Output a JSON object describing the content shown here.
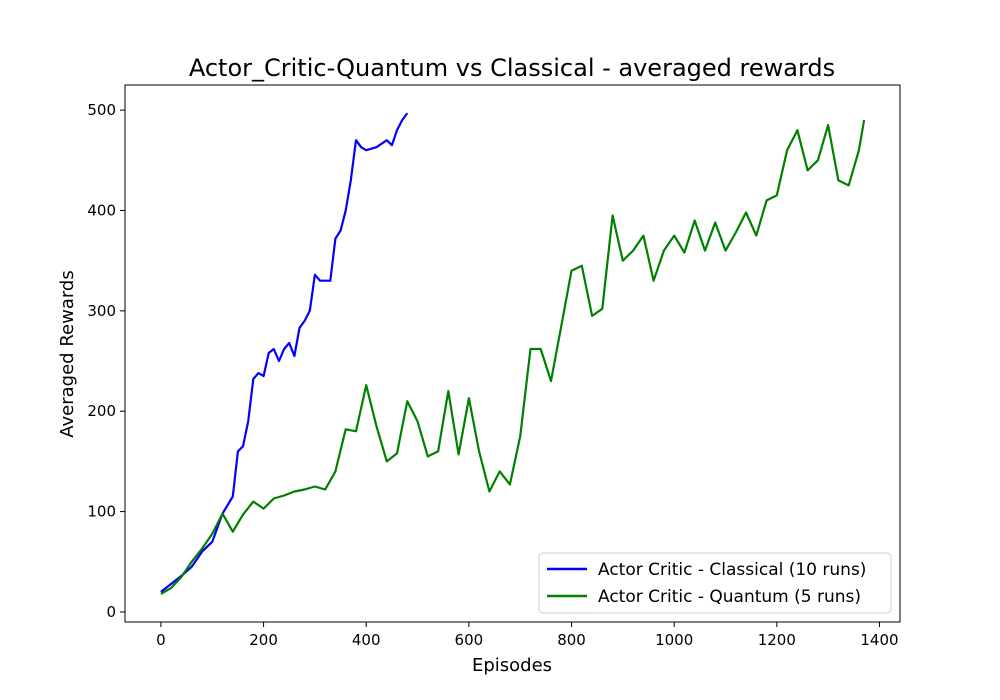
{
  "chart_data": {
    "type": "line",
    "title": "Actor_Critic-Quantum vs Classical - averaged rewards",
    "xlabel": "Episodes",
    "ylabel": "Averaged Rewards",
    "xlim": [
      -70,
      1440
    ],
    "ylim": [
      -10,
      525
    ],
    "xticks": [
      0,
      200,
      400,
      600,
      800,
      1000,
      1200,
      1400
    ],
    "xtick_labels": [
      "0",
      "200",
      "400",
      "600",
      "800",
      "1000",
      "1200",
      "1400"
    ],
    "yticks": [
      0,
      100,
      200,
      300,
      400,
      500
    ],
    "ytick_labels": [
      "0",
      "100",
      "200",
      "300",
      "400",
      "500"
    ],
    "grid": false,
    "legend_position": "lower-right",
    "series": [
      {
        "name": "Actor Critic - Classical (10 runs)",
        "color": "#0000ff",
        "x": [
          0,
          20,
          40,
          60,
          80,
          100,
          120,
          140,
          150,
          160,
          170,
          180,
          190,
          200,
          210,
          220,
          230,
          240,
          250,
          260,
          270,
          280,
          290,
          300,
          310,
          320,
          330,
          340,
          350,
          360,
          370,
          380,
          390,
          400,
          420,
          440,
          450,
          460,
          470,
          480
        ],
        "y": [
          20,
          28,
          36,
          45,
          60,
          70,
          98,
          115,
          160,
          165,
          190,
          232,
          238,
          235,
          258,
          262,
          250,
          262,
          268,
          255,
          283,
          290,
          300,
          336,
          330,
          330,
          330,
          372,
          380,
          400,
          430,
          470,
          463,
          460,
          463,
          470,
          465,
          480,
          490,
          497
        ]
      },
      {
        "name": "Actor Critic - Quantum (5 runs)",
        "color": "#008000",
        "x": [
          0,
          20,
          40,
          60,
          80,
          100,
          120,
          140,
          160,
          180,
          200,
          220,
          240,
          260,
          280,
          300,
          320,
          340,
          360,
          380,
          400,
          420,
          440,
          460,
          480,
          500,
          520,
          540,
          560,
          580,
          600,
          620,
          640,
          660,
          680,
          700,
          720,
          740,
          760,
          780,
          800,
          820,
          840,
          860,
          880,
          900,
          920,
          940,
          960,
          980,
          1000,
          1020,
          1040,
          1060,
          1080,
          1100,
          1120,
          1140,
          1160,
          1180,
          1200,
          1220,
          1240,
          1260,
          1280,
          1300,
          1320,
          1340,
          1360,
          1370
        ],
        "y": [
          18,
          24,
          35,
          50,
          63,
          78,
          98,
          80,
          97,
          110,
          103,
          113,
          116,
          120,
          122,
          125,
          122,
          140,
          182,
          180,
          226,
          185,
          150,
          158,
          210,
          190,
          155,
          160,
          220,
          157,
          213,
          160,
          120,
          140,
          127,
          175,
          262,
          262,
          230,
          285,
          340,
          345,
          295,
          302,
          395,
          350,
          360,
          375,
          330,
          360,
          375,
          358,
          390,
          360,
          388,
          360,
          378,
          398,
          375,
          410,
          415,
          460,
          480,
          440,
          450,
          485,
          430,
          425,
          460,
          490
        ]
      }
    ]
  }
}
